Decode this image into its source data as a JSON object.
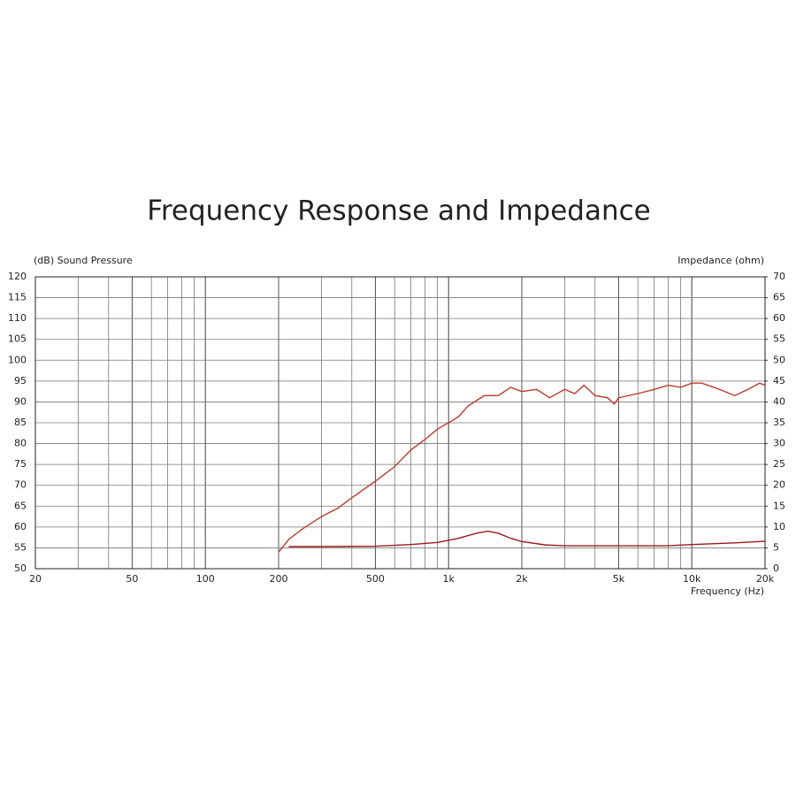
{
  "chart_data": {
    "type": "line",
    "title": "Frequency Response and Impedance",
    "y_label": "(dB) Sound Pressure",
    "y2_label": "Impedance (ohm)",
    "x_label": "Frequency (Hz)",
    "log_x": true,
    "grid": true,
    "xlim": [
      20,
      20000
    ],
    "xticks": [
      20,
      50,
      100,
      200,
      500,
      {
        "value": 1000,
        "label": "1k"
      },
      {
        "value": 2000,
        "label": "2k"
      },
      {
        "value": 5000,
        "label": "5k"
      },
      {
        "value": 10000,
        "label": "10k"
      },
      {
        "value": 20000,
        "label": "20k"
      }
    ],
    "ylim": [
      50,
      120
    ],
    "yticks": [
      50,
      55,
      60,
      65,
      70,
      75,
      80,
      85,
      90,
      95,
      100,
      105,
      110,
      115,
      120
    ],
    "y2lim": [
      0,
      70
    ],
    "y2ticks": [
      0,
      5,
      10,
      15,
      20,
      25,
      30,
      35,
      40,
      45,
      50,
      55,
      60,
      65,
      70
    ],
    "series": [
      {
        "name": "Sound Pressure",
        "color": "#c0392b",
        "x": [
          200,
          220,
          250,
          300,
          350,
          400,
          500,
          600,
          700,
          800,
          900,
          1000,
          1100,
          1200,
          1400,
          1600,
          1800,
          2000,
          2300,
          2600,
          3000,
          3300,
          3600,
          4000,
          4500,
          4800,
          5000,
          6000,
          7000,
          8000,
          9000,
          10000,
          11000,
          13000,
          15000,
          17000,
          19000,
          20000
        ],
        "values": [
          54,
          57,
          59.5,
          62.5,
          64.5,
          67,
          71,
          74.5,
          78.5,
          81,
          83.5,
          85,
          86.5,
          89,
          91.5,
          91.5,
          93.5,
          92.5,
          93,
          91,
          93,
          92,
          94,
          91.5,
          91,
          89.5,
          91,
          92,
          93,
          94,
          93.5,
          94.5,
          94.5,
          93,
          91.5,
          93,
          94.5,
          94
        ]
      },
      {
        "name": "Impedance",
        "color": "#9b1b1b",
        "axis": "y2",
        "x": [
          220,
          300,
          500,
          700,
          900,
          1100,
          1300,
          1450,
          1600,
          1800,
          2000,
          2500,
          3000,
          5000,
          8000,
          10000,
          15000,
          20000
        ],
        "values": [
          5.3,
          5.3,
          5.4,
          5.8,
          6.3,
          7.3,
          8.5,
          9.0,
          8.5,
          7.3,
          6.5,
          5.7,
          5.5,
          5.5,
          5.5,
          5.8,
          6.2,
          6.6
        ]
      }
    ]
  }
}
